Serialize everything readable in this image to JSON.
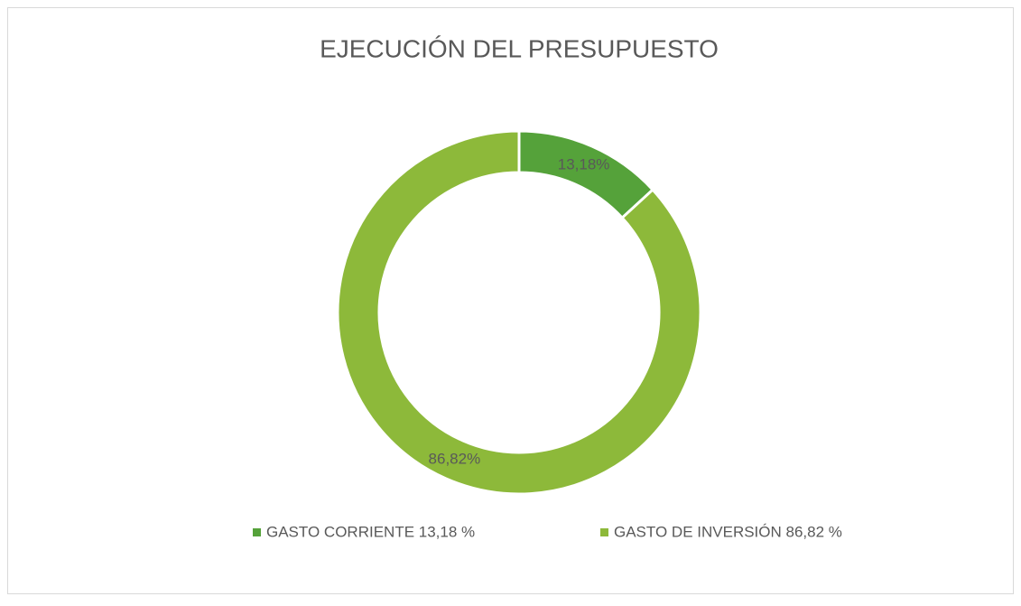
{
  "chart_data": {
    "type": "donut",
    "title": "EJECUCIÓN DEL PRESUPUESTO",
    "categories": [
      "GASTO CORRIENTE 13,18 %",
      "GASTO DE INVERSIÓN 86,82 %"
    ],
    "values": [
      13.18,
      86.82
    ],
    "value_labels": [
      "13,18%",
      "86,82%"
    ],
    "colors": [
      "#55a23a",
      "#8db93a"
    ],
    "legend": "bottom"
  }
}
